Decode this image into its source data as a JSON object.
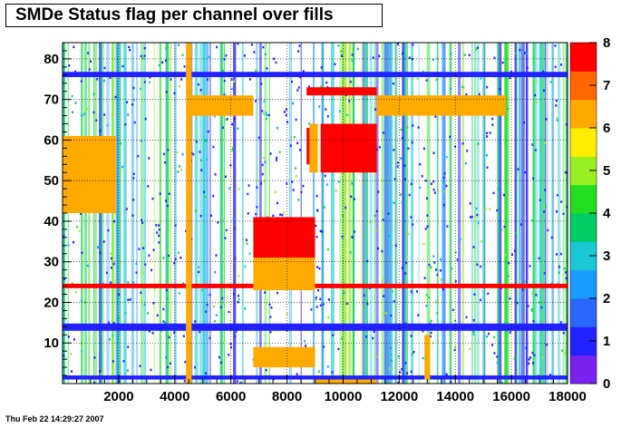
{
  "title": "SMDe Status flag per channel over fills",
  "footer": "Thu Feb 22 14:29:27 2007",
  "chart_data": {
    "type": "heatmap",
    "title": "SMDe Status flag per channel over fills",
    "xlabel": "",
    "ylabel": "",
    "xlim": [
      0,
      18000
    ],
    "ylim": [
      0,
      84
    ],
    "zlim": [
      0,
      8
    ],
    "xticks": [
      2000,
      4000,
      6000,
      8000,
      10000,
      12000,
      14000,
      16000,
      18000
    ],
    "yticks": [
      10,
      20,
      30,
      40,
      50,
      60,
      70,
      80
    ],
    "zticks": [
      0,
      1,
      2,
      3,
      4,
      5,
      6,
      7,
      8
    ],
    "grid": true,
    "palette": [
      "#7722ee",
      "#2222ff",
      "#2b66ff",
      "#1a9cff",
      "#19c7d2",
      "#00cc66",
      "#22dd22",
      "#99ee22",
      "#ffee00",
      "#ffaa00",
      "#ff6600",
      "#ff0000"
    ],
    "regions": [
      {
        "x": [
          0,
          18000
        ],
        "y": [
          75.5,
          76.8
        ],
        "value": 1
      },
      {
        "x": [
          0,
          18000
        ],
        "y": [
          13,
          14.8
        ],
        "value": 1
      },
      {
        "x": [
          0,
          18000
        ],
        "y": [
          1,
          2
        ],
        "value": 1
      },
      {
        "x": [
          0,
          18000
        ],
        "y": [
          23.5,
          24.6
        ],
        "value": 8
      },
      {
        "x": [
          0,
          1900
        ],
        "y": [
          42,
          61
        ],
        "value": 6
      },
      {
        "x": [
          4500,
          6800
        ],
        "y": [
          66,
          71
        ],
        "value": 6
      },
      {
        "x": [
          11200,
          15800
        ],
        "y": [
          66,
          71
        ],
        "value": 6
      },
      {
        "x": [
          8700,
          11200
        ],
        "y": [
          71,
          73
        ],
        "value": 8
      },
      {
        "x": [
          9200,
          11200
        ],
        "y": [
          52,
          64
        ],
        "value": 8
      },
      {
        "x": [
          6800,
          9000
        ],
        "y": [
          31,
          41
        ],
        "value": 8
      },
      {
        "x": [
          6800,
          9000
        ],
        "y": [
          23,
          31
        ],
        "value": 6
      },
      {
        "x": [
          6800,
          9000
        ],
        "y": [
          4,
          9
        ],
        "value": 6
      },
      {
        "x": [
          8800,
          9100
        ],
        "y": [
          52,
          64
        ],
        "value": 6
      },
      {
        "x": [
          8700,
          8800
        ],
        "y": [
          54,
          63
        ],
        "value": 8
      },
      {
        "x": [
          4400,
          4600
        ],
        "y": [
          0,
          84
        ],
        "value": 6
      },
      {
        "x": [
          12900,
          13100
        ],
        "y": [
          1,
          12
        ],
        "value": 6
      },
      {
        "x": [
          9000,
          11200
        ],
        "y": [
          0,
          1
        ],
        "value": 6
      }
    ]
  }
}
